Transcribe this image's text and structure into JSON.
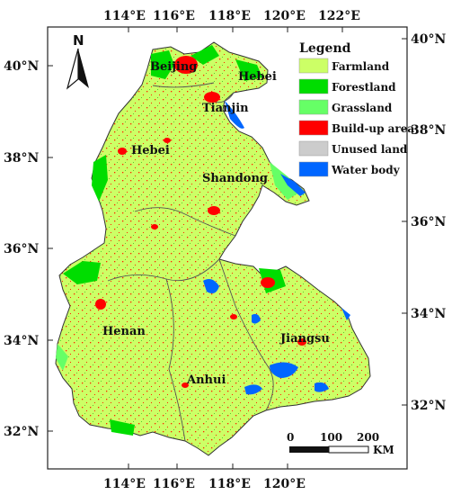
{
  "map": {
    "top_ticks": [
      "114°E",
      "116°E",
      "118°E",
      "120°E",
      "122°E"
    ],
    "bottom_ticks": [
      "114°E",
      "116°E",
      "118°E",
      "120°E"
    ],
    "left_ticks": [
      "40°N",
      "38°N",
      "36°N",
      "34°N",
      "32°N"
    ],
    "right_ticks": [
      "40°N",
      "38°N",
      "36°N",
      "34°N",
      "32°N"
    ],
    "regions": {
      "beijing": "Beijing",
      "hebei_ne": "Hebei",
      "tianjin": "Tianjin",
      "hebei": "Hebei",
      "shandong": "Shandong",
      "henan": "Henan",
      "jiangsu": "Jiangsu",
      "anhui": "Anhui"
    },
    "north_arrow": "N",
    "scale_bar": {
      "labels": [
        "0",
        "100",
        "200"
      ],
      "unit": "KM"
    }
  },
  "legend": {
    "title": "Legend",
    "items": [
      {
        "label": "Farmland",
        "color": "#ccff66"
      },
      {
        "label": "Forestland",
        "color": "#00dd00"
      },
      {
        "label": "Grassland",
        "color": "#66ff66"
      },
      {
        "label": "Build-up area",
        "color": "#ff0000"
      },
      {
        "label": "Unused land",
        "color": "#cccccc"
      },
      {
        "label": "Water body",
        "color": "#0066ff"
      }
    ]
  }
}
